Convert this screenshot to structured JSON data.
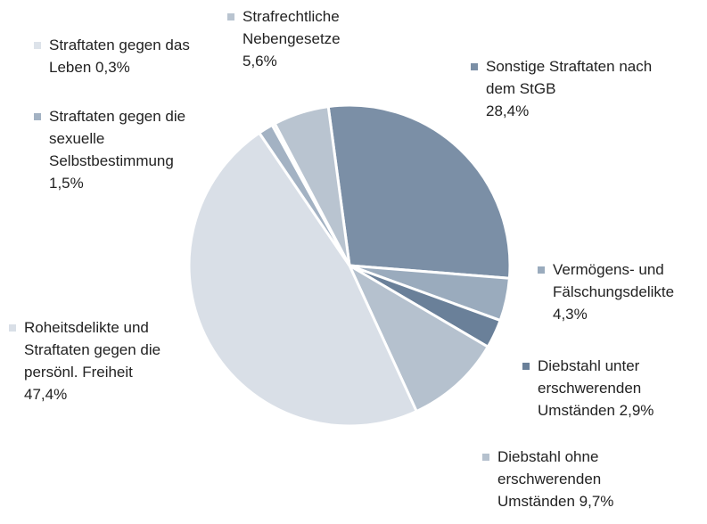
{
  "chart_data": {
    "type": "pie",
    "categories": [
      "Sonstige Straftaten nach dem StGB",
      "Vermögens- und Fälschungsdelikte",
      "Diebstahl unter erschwerenden Umständen",
      "Diebstahl ohne erschwerenden Umständen",
      "Roheitsdelikte und Straftaten gegen die persönl. Freiheit",
      "Straftaten gegen die sexuelle Selbstbestimmung",
      "Straftaten gegen das Leben",
      "Strafrechtliche Nebengesetze"
    ],
    "values": [
      28.4,
      4.3,
      2.9,
      9.7,
      47.4,
      1.5,
      0.3,
      5.6
    ],
    "value_labels": [
      "28,4%",
      "4,3%",
      "2,9%",
      "9,7%",
      "47,4%",
      "1,5%",
      "0,3%",
      "5,6%"
    ],
    "colors": [
      "#7b8fa6",
      "#9aabbd",
      "#6a8099",
      "#b5c1ce",
      "#d9dfe7",
      "#a3b2c3",
      "#dde3ea",
      "#b9c4d0"
    ]
  }
}
